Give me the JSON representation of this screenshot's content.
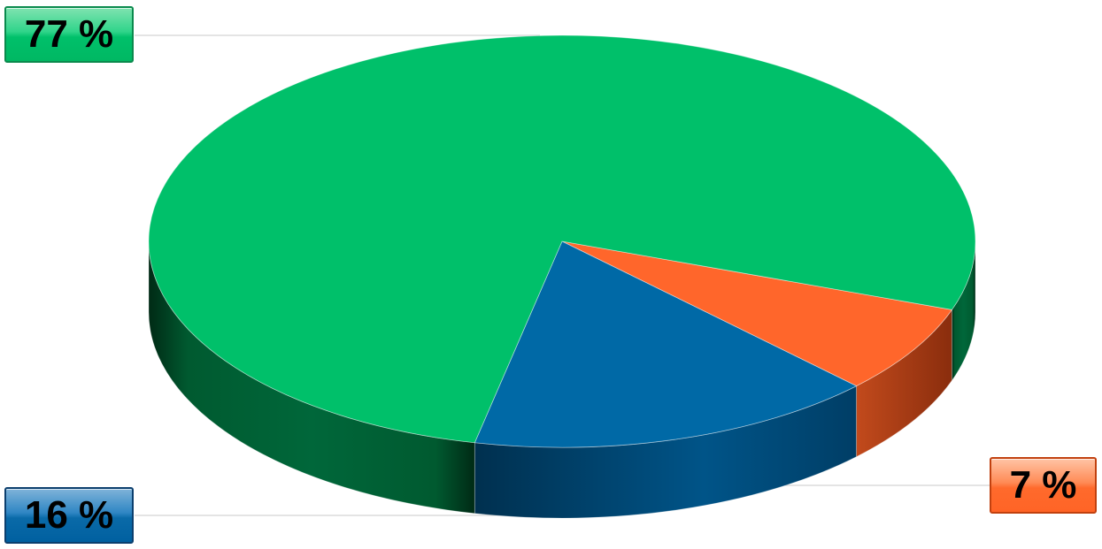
{
  "chart_data": {
    "type": "pie",
    "style": "3d",
    "slices": [
      {
        "label": "77 %",
        "value": 77,
        "color": "#00c06a",
        "side_color": "#00582f"
      },
      {
        "label": "7 %",
        "value": 7,
        "color": "#ff662b",
        "side_color": "#b2431a"
      },
      {
        "label": "16 %",
        "value": 16,
        "color": "#0069a6",
        "side_color": "#00456d"
      }
    ],
    "legend": "none",
    "title": ""
  }
}
